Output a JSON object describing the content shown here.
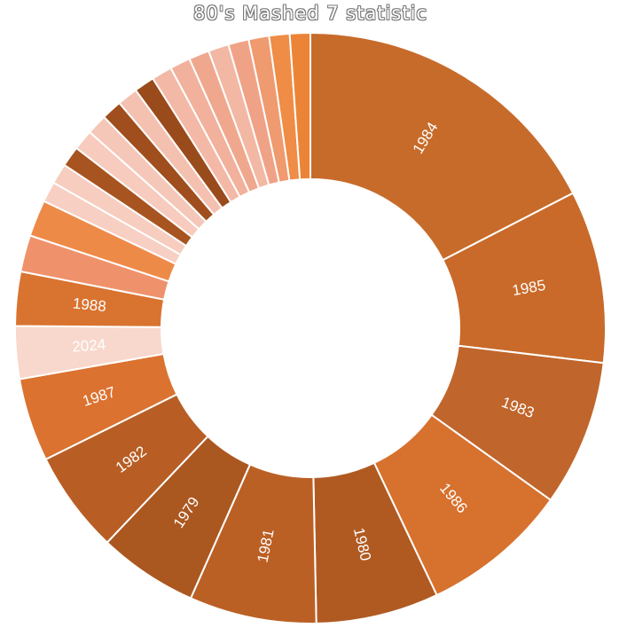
{
  "chart_data": {
    "type": "donut",
    "title": "80's Mashed 7 statistic",
    "slices": [
      {
        "label": "1984",
        "value": 21.8,
        "color": "#c76b2a"
      },
      {
        "label": "1985",
        "value": 11.8,
        "color": "#c96a2a"
      },
      {
        "label": "1983",
        "value": 10.0,
        "color": "#c0652b"
      },
      {
        "label": "1986",
        "value": 10.1,
        "color": "#d7712e"
      },
      {
        "label": "1980",
        "value": 8.4,
        "color": "#b05a22"
      },
      {
        "label": "1981",
        "value": 8.7,
        "color": "#bb6025"
      },
      {
        "label": "1979",
        "value": 6.8,
        "color": "#ab5720"
      },
      {
        "label": "1982",
        "value": 7.0,
        "color": "#b85e25"
      },
      {
        "label": "1987",
        "value": 5.7,
        "color": "#db7230"
      },
      {
        "label": "2024",
        "value": 3.6,
        "color": "#f8d8cc"
      },
      {
        "label": "1988",
        "value": 3.7,
        "color": "#d97330"
      },
      {
        "label": "",
        "value": 2.5,
        "color": "#ef926b"
      },
      {
        "label": "",
        "value": 2.5,
        "color": "#ee8a48"
      },
      {
        "label": "",
        "value": 1.4,
        "color": "#f7cfc3"
      },
      {
        "label": "",
        "value": 1.4,
        "color": "#f6cdbf"
      },
      {
        "label": "",
        "value": 1.4,
        "color": "#a85420"
      },
      {
        "label": "",
        "value": 1.4,
        "color": "#f7cbbe"
      },
      {
        "label": "",
        "value": 1.4,
        "color": "#f5c7b8"
      },
      {
        "label": "",
        "value": 1.4,
        "color": "#a04e1d"
      },
      {
        "label": "",
        "value": 1.4,
        "color": "#f4c1b1"
      },
      {
        "label": "",
        "value": 1.4,
        "color": "#9a4b1c"
      },
      {
        "label": "",
        "value": 1.4,
        "color": "#f3b9a6"
      },
      {
        "label": "",
        "value": 1.4,
        "color": "#f1b19c"
      },
      {
        "label": "",
        "value": 1.4,
        "color": "#efa88e"
      },
      {
        "label": "",
        "value": 1.4,
        "color": "#f2b8a4"
      },
      {
        "label": "",
        "value": 1.4,
        "color": "#f0a286"
      },
      {
        "label": "",
        "value": 1.4,
        "color": "#ef9a6f"
      },
      {
        "label": "",
        "value": 1.4,
        "color": "#ef8c45"
      },
      {
        "label": "",
        "value": 1.4,
        "color": "#ec8437"
      }
    ]
  }
}
